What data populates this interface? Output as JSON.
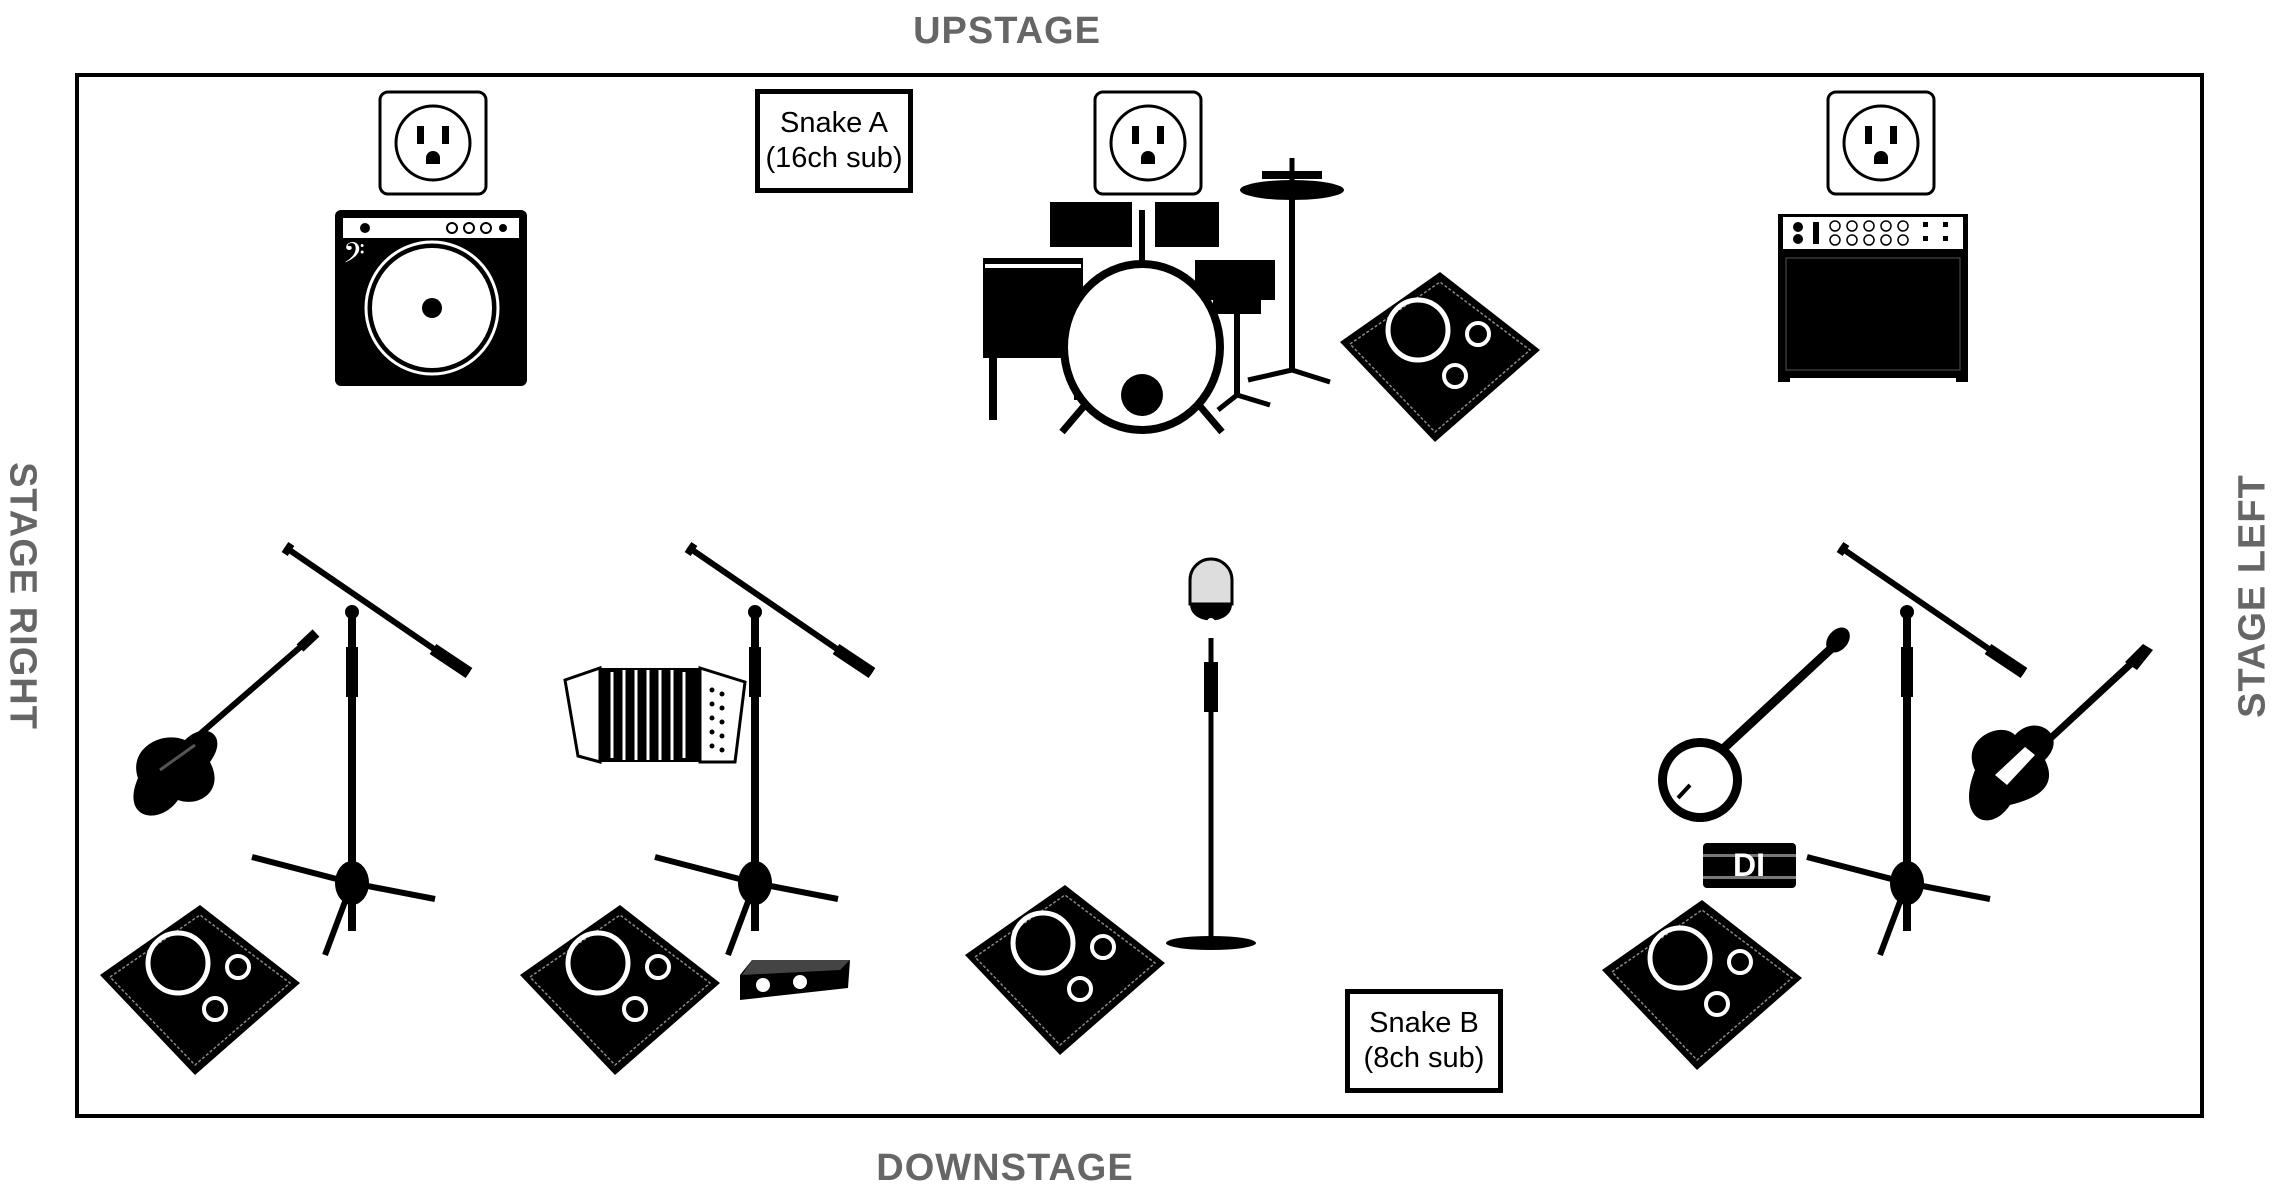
{
  "labels": {
    "upstage": "UPSTAGE",
    "downstage": "DOWNSTAGE",
    "stage_right": "STAGE RIGHT",
    "stage_left": "STAGE LEFT"
  },
  "snakes": {
    "a": {
      "line1": "Snake A",
      "line2": "(16ch sub)"
    },
    "b": {
      "line1": "Snake B",
      "line2": "(8ch sub)"
    }
  },
  "di_boxes": {
    "right": "DI"
  },
  "colors": {
    "ink": "#000000",
    "edge_label": "#666666"
  },
  "icons": [
    "power-outlet-icon",
    "bass-amp-icon",
    "drum-kit-icon",
    "guitar-amp-icon",
    "floor-monitor-icon",
    "boom-mic-stand-icon",
    "straight-mic-stand-icon",
    "bass-guitar-icon",
    "accordion-icon",
    "banjo-icon",
    "electric-guitar-icon",
    "di-box-icon"
  ]
}
